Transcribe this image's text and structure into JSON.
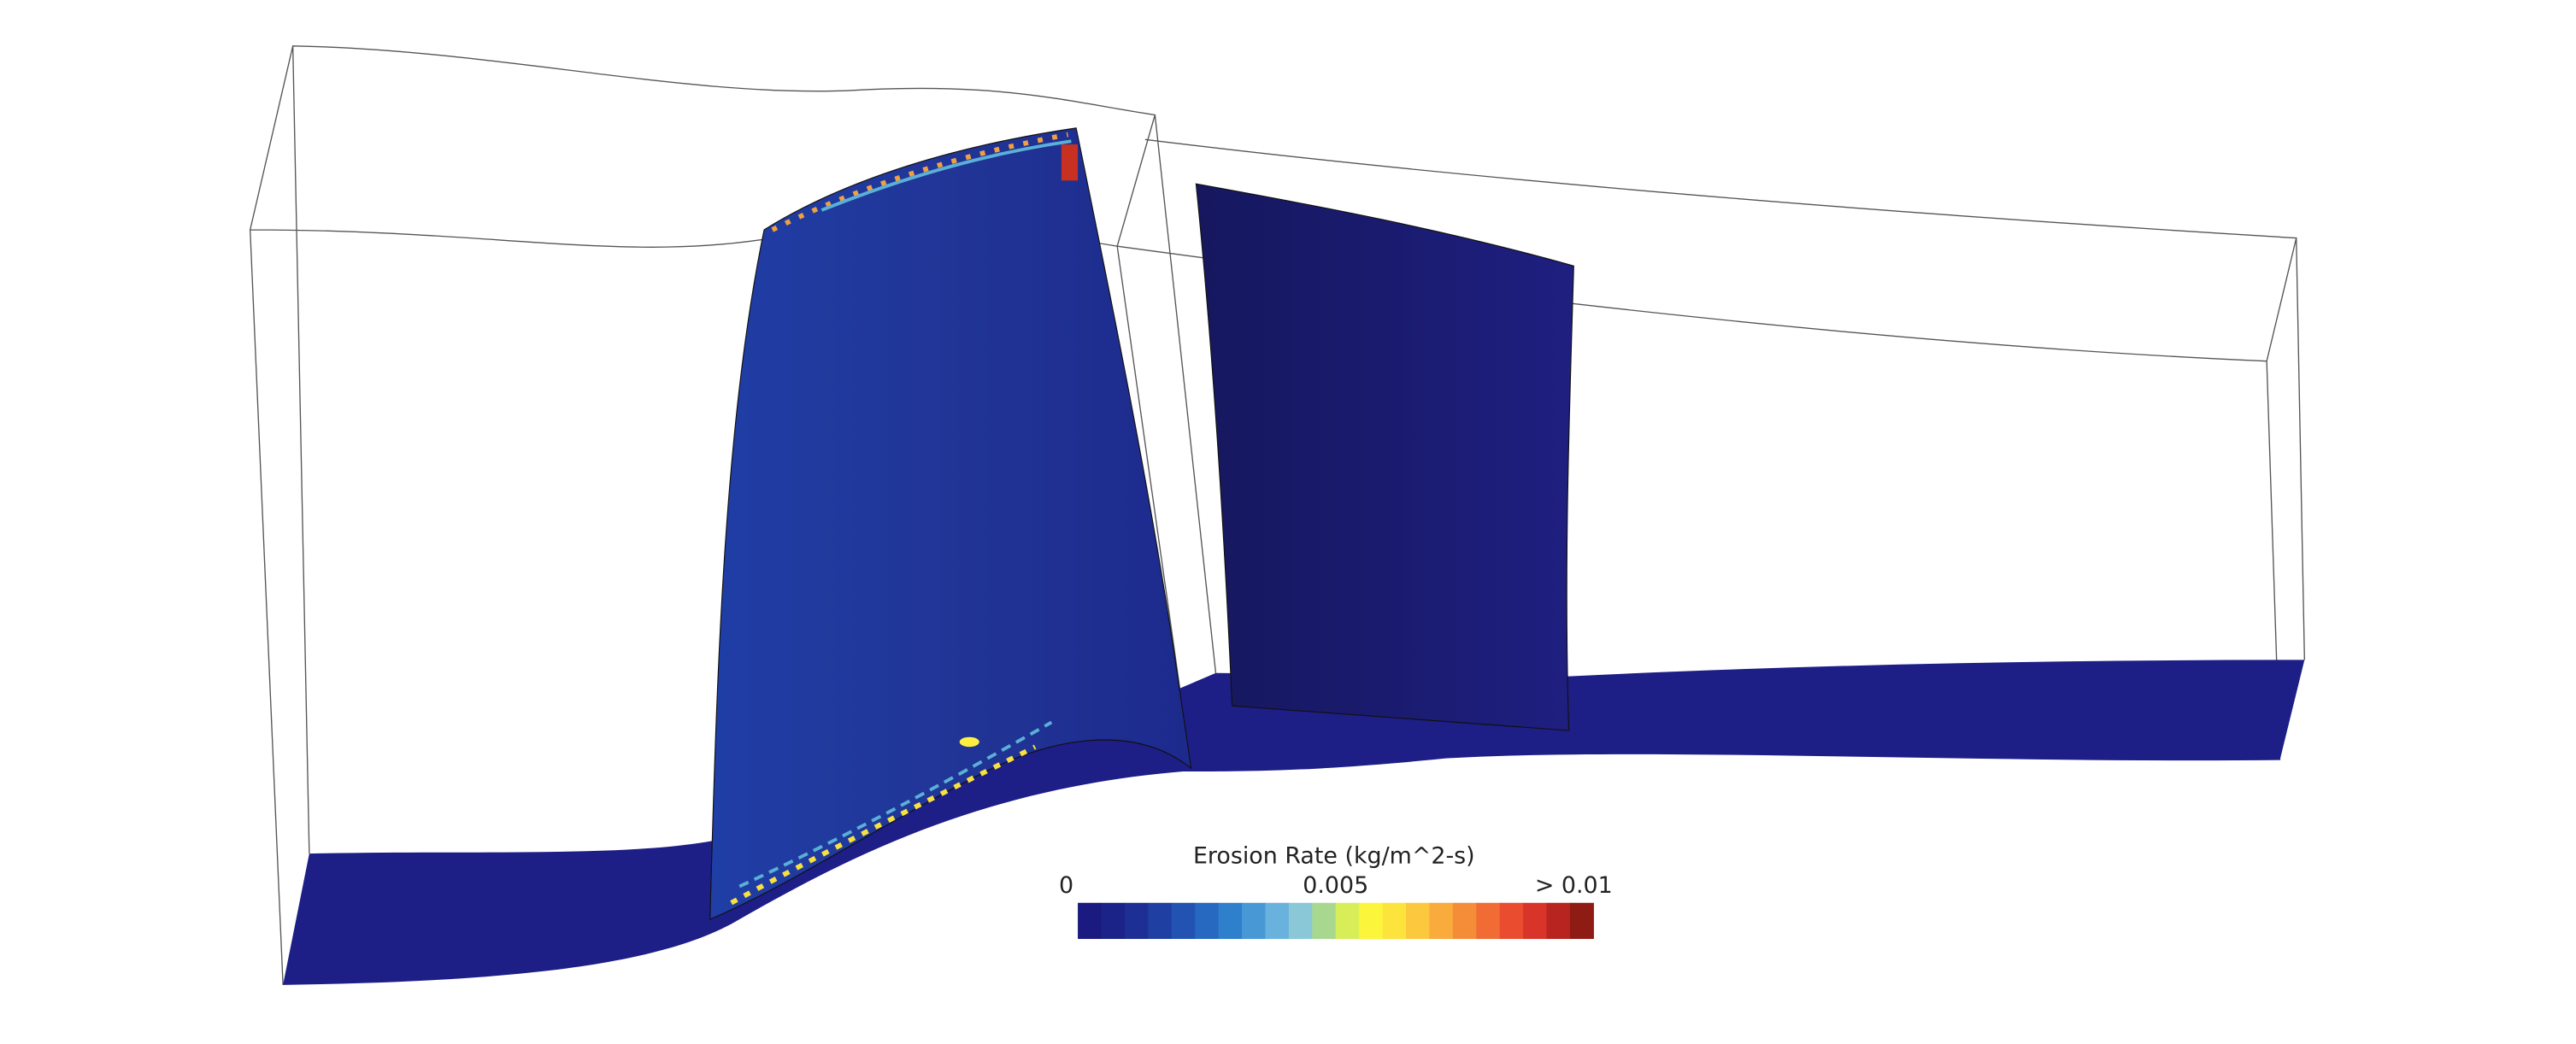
{
  "colorbar": {
    "title": "Erosion Rate (kg/m^2-s)",
    "lim": [
      0,
      0.01
    ],
    "ticks": [
      0,
      0.005,
      {
        "value": 0.01,
        "label": "> 0.01"
      }
    ],
    "colors": [
      "#1a1a80",
      "#1b2388",
      "#1d2f94",
      "#1f3fa2",
      "#2252b2",
      "#2768c0",
      "#2f80cc",
      "#4898d6",
      "#6ab2de",
      "#8ac8d8",
      "#a8d890",
      "#d8ee58",
      "#fbf63c",
      "#fde43c",
      "#fcc83e",
      "#f9ab3c",
      "#f58c38",
      "#f06c34",
      "#e94c2e",
      "#d8342a",
      "#b82420",
      "#8e1c14"
    ]
  }
}
